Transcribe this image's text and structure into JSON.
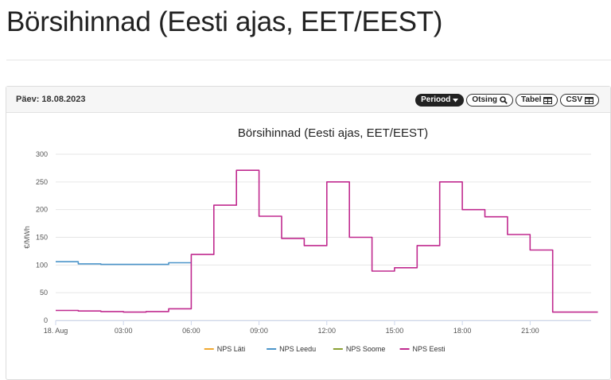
{
  "page": {
    "title": "Börsihinnad (Eesti ajas, EET/EEST)"
  },
  "panel": {
    "date_label": "Päev: 18.08.2023",
    "toolbar": {
      "period_label": "Periood",
      "search_label": "Otsing",
      "table_label": "Tabel",
      "csv_label": "CSV"
    }
  },
  "chart_data": {
    "type": "line",
    "step": true,
    "title": "Börsihinnad (Eesti ajas, EET/EEST)",
    "ylabel": "€/MWh",
    "xlabel": "",
    "ylim": [
      0,
      300
    ],
    "yticks": [
      0,
      50,
      100,
      150,
      200,
      250,
      300
    ],
    "xlim": [
      0,
      23.7
    ],
    "xticks": [
      {
        "value": 0,
        "label": "18. Aug"
      },
      {
        "value": 3,
        "label": "03:00"
      },
      {
        "value": 6,
        "label": "06:00"
      },
      {
        "value": 9,
        "label": "09:00"
      },
      {
        "value": 12,
        "label": "12:00"
      },
      {
        "value": 15,
        "label": "15:00"
      },
      {
        "value": 18,
        "label": "18:00"
      },
      {
        "value": 21,
        "label": "21:00"
      }
    ],
    "grid": true,
    "legend_position": "bottom-center",
    "series": [
      {
        "name": "NPS Läti",
        "color": "#f0a830",
        "x": [],
        "values": []
      },
      {
        "name": "NPS Leedu",
        "color": "#4b94c9",
        "x": [
          0,
          1,
          2,
          3,
          4,
          5
        ],
        "values": [
          106,
          102,
          101,
          101,
          101,
          104
        ]
      },
      {
        "name": "NPS Soome",
        "color": "#8aa033",
        "x": [],
        "values": []
      },
      {
        "name": "NPS Eesti",
        "color": "#c02a8f",
        "x": [
          0,
          1,
          2,
          3,
          4,
          5,
          6,
          7,
          8,
          9,
          10,
          11,
          12,
          13,
          14,
          15,
          16,
          17,
          18,
          19,
          20,
          21,
          22,
          23
        ],
        "values": [
          18,
          17,
          16,
          15,
          16,
          21,
          119,
          208,
          271,
          188,
          148,
          135,
          250,
          150,
          89,
          95,
          135,
          250,
          200,
          187,
          155,
          127,
          15,
          15
        ]
      }
    ]
  }
}
